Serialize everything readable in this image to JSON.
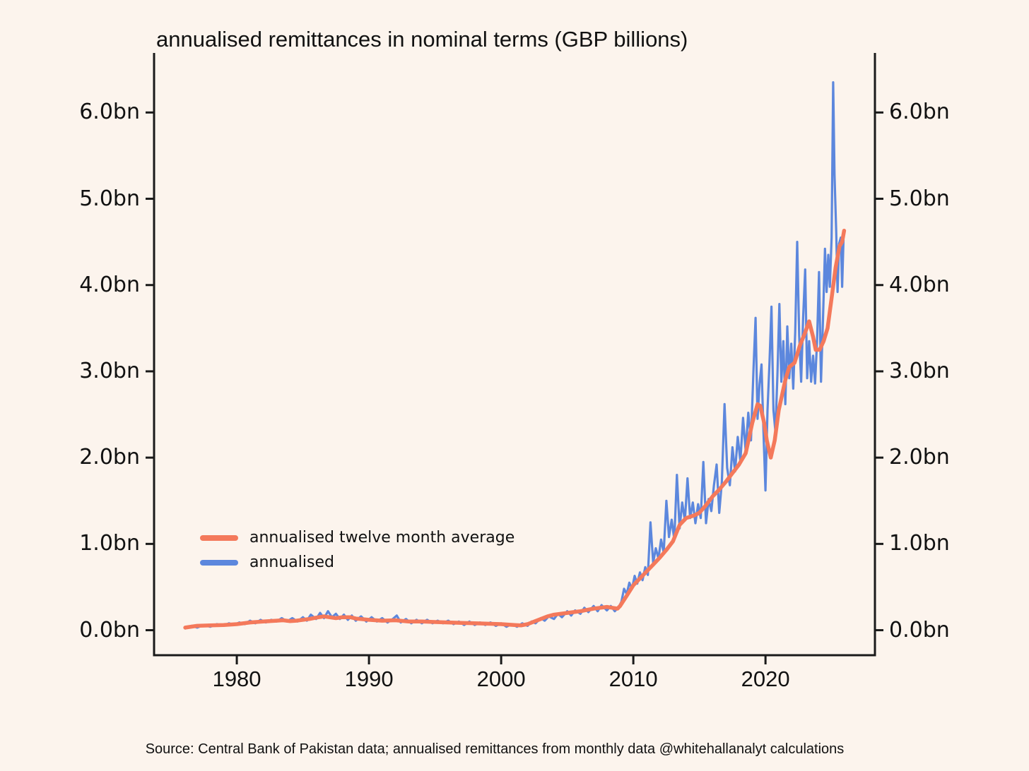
{
  "figure": {
    "background_color": "#FCF4ED",
    "text_color": "#111111",
    "spine_color": "#1a1a1a"
  },
  "chart_data": {
    "type": "line",
    "title": "annualised remittances in nominal terms (GBP billions)",
    "source": "Source: Central Bank of Pakistan data; annualised remittances from monthly data @whitehallanalyt calculations",
    "xlabel": "",
    "ylabel": "",
    "grid": false,
    "xlim": [
      1973.74,
      2028.28
    ],
    "ylim": [
      -0.29,
      6.69
    ],
    "x_ticks": [
      {
        "value": 1980,
        "label": "1980"
      },
      {
        "value": 1990,
        "label": "1990"
      },
      {
        "value": 2000,
        "label": "2000"
      },
      {
        "value": 2010,
        "label": "2010"
      },
      {
        "value": 2020,
        "label": "2020"
      }
    ],
    "y_ticks": [
      {
        "value": 0,
        "label": "0.0bn"
      },
      {
        "value": 1,
        "label": "1.0bn"
      },
      {
        "value": 2,
        "label": "2.0bn"
      },
      {
        "value": 3,
        "label": "3.0bn"
      },
      {
        "value": 4,
        "label": "4.0bn"
      },
      {
        "value": 5,
        "label": "5.0bn"
      },
      {
        "value": 6,
        "label": "6.0bn"
      }
    ],
    "y_axis_sides": [
      "left",
      "right"
    ],
    "legend": {
      "position": "lower-left-inside",
      "entries": [
        {
          "label": "annualised twelve month average",
          "color": "#F4795B"
        },
        {
          "label": "annualised",
          "color": "#5C87DD"
        }
      ]
    },
    "series": [
      {
        "name": "annualised",
        "color": "#5C87DD",
        "line_width": 3.2,
        "points": [
          [
            1976.1,
            0.02
          ],
          [
            1976.6,
            0.05
          ],
          [
            1977.0,
            0.03
          ],
          [
            1977.5,
            0.06
          ],
          [
            1978.0,
            0.04
          ],
          [
            1978.5,
            0.07
          ],
          [
            1979.0,
            0.05
          ],
          [
            1979.4,
            0.08
          ],
          [
            1979.8,
            0.06
          ],
          [
            1980.2,
            0.09
          ],
          [
            1980.6,
            0.07
          ],
          [
            1981.0,
            0.11
          ],
          [
            1981.4,
            0.08
          ],
          [
            1981.8,
            0.12
          ],
          [
            1982.2,
            0.09
          ],
          [
            1982.6,
            0.12
          ],
          [
            1983.0,
            0.1
          ],
          [
            1983.4,
            0.14
          ],
          [
            1983.8,
            0.1
          ],
          [
            1984.2,
            0.14
          ],
          [
            1984.6,
            0.1
          ],
          [
            1985.0,
            0.15
          ],
          [
            1985.3,
            0.11
          ],
          [
            1985.6,
            0.18
          ],
          [
            1986.0,
            0.13
          ],
          [
            1986.3,
            0.2
          ],
          [
            1986.6,
            0.14
          ],
          [
            1986.9,
            0.22
          ],
          [
            1987.2,
            0.15
          ],
          [
            1987.5,
            0.19
          ],
          [
            1987.8,
            0.13
          ],
          [
            1988.1,
            0.18
          ],
          [
            1988.4,
            0.12
          ],
          [
            1988.7,
            0.17
          ],
          [
            1989.0,
            0.11
          ],
          [
            1989.4,
            0.16
          ],
          [
            1989.8,
            0.1
          ],
          [
            1990.2,
            0.15
          ],
          [
            1990.6,
            0.1
          ],
          [
            1991.0,
            0.14
          ],
          [
            1991.4,
            0.09
          ],
          [
            1991.8,
            0.13
          ],
          [
            1992.1,
            0.17
          ],
          [
            1992.4,
            0.09
          ],
          [
            1992.8,
            0.13
          ],
          [
            1993.2,
            0.08
          ],
          [
            1993.6,
            0.12
          ],
          [
            1994.0,
            0.08
          ],
          [
            1994.4,
            0.12
          ],
          [
            1994.8,
            0.08
          ],
          [
            1995.2,
            0.11
          ],
          [
            1995.6,
            0.08
          ],
          [
            1996.0,
            0.11
          ],
          [
            1996.4,
            0.07
          ],
          [
            1996.8,
            0.1
          ],
          [
            1997.2,
            0.06
          ],
          [
            1997.6,
            0.1
          ],
          [
            1998.0,
            0.06
          ],
          [
            1998.4,
            0.09
          ],
          [
            1998.8,
            0.06
          ],
          [
            1999.2,
            0.09
          ],
          [
            1999.6,
            0.05
          ],
          [
            2000.0,
            0.08
          ],
          [
            2000.4,
            0.04
          ],
          [
            2000.8,
            0.07
          ],
          [
            2001.2,
            0.04
          ],
          [
            2001.6,
            0.08
          ],
          [
            2002.0,
            0.05
          ],
          [
            2002.3,
            0.1
          ],
          [
            2002.6,
            0.08
          ],
          [
            2003.0,
            0.14
          ],
          [
            2003.3,
            0.11
          ],
          [
            2003.6,
            0.16
          ],
          [
            2004.0,
            0.13
          ],
          [
            2004.3,
            0.19
          ],
          [
            2004.6,
            0.15
          ],
          [
            2005.0,
            0.22
          ],
          [
            2005.3,
            0.17
          ],
          [
            2005.6,
            0.23
          ],
          [
            2006.0,
            0.19
          ],
          [
            2006.3,
            0.26
          ],
          [
            2006.6,
            0.21
          ],
          [
            2007.0,
            0.28
          ],
          [
            2007.3,
            0.22
          ],
          [
            2007.6,
            0.29
          ],
          [
            2008.0,
            0.23
          ],
          [
            2008.3,
            0.28
          ],
          [
            2008.6,
            0.22
          ],
          [
            2008.9,
            0.27
          ],
          [
            2009.1,
            0.33
          ],
          [
            2009.3,
            0.48
          ],
          [
            2009.5,
            0.42
          ],
          [
            2009.7,
            0.55
          ],
          [
            2009.9,
            0.48
          ],
          [
            2010.1,
            0.63
          ],
          [
            2010.3,
            0.54
          ],
          [
            2010.5,
            0.67
          ],
          [
            2010.7,
            0.58
          ],
          [
            2010.9,
            0.73
          ],
          [
            2011.1,
            0.64
          ],
          [
            2011.3,
            1.25
          ],
          [
            2011.5,
            0.78
          ],
          [
            2011.7,
            0.95
          ],
          [
            2011.9,
            0.83
          ],
          [
            2012.1,
            1.05
          ],
          [
            2012.3,
            0.9
          ],
          [
            2012.5,
            1.5
          ],
          [
            2012.7,
            1.08
          ],
          [
            2012.9,
            1.28
          ],
          [
            2013.1,
            1.05
          ],
          [
            2013.3,
            1.8
          ],
          [
            2013.5,
            1.18
          ],
          [
            2013.7,
            1.48
          ],
          [
            2013.9,
            1.27
          ],
          [
            2014.1,
            1.76
          ],
          [
            2014.3,
            1.3
          ],
          [
            2014.5,
            1.48
          ],
          [
            2014.7,
            1.24
          ],
          [
            2014.9,
            1.46
          ],
          [
            2015.1,
            1.3
          ],
          [
            2015.3,
            1.95
          ],
          [
            2015.5,
            1.24
          ],
          [
            2015.7,
            1.52
          ],
          [
            2015.9,
            1.38
          ],
          [
            2016.1,
            1.68
          ],
          [
            2016.3,
            1.92
          ],
          [
            2016.5,
            1.36
          ],
          [
            2016.7,
            1.72
          ],
          [
            2016.9,
            2.62
          ],
          [
            2017.1,
            1.88
          ],
          [
            2017.3,
            1.68
          ],
          [
            2017.5,
            2.12
          ],
          [
            2017.7,
            1.84
          ],
          [
            2017.9,
            2.24
          ],
          [
            2018.1,
            1.96
          ],
          [
            2018.3,
            2.46
          ],
          [
            2018.5,
            2.08
          ],
          [
            2018.7,
            2.52
          ],
          [
            2018.9,
            2.2
          ],
          [
            2019.1,
            3.05
          ],
          [
            2019.25,
            3.62
          ],
          [
            2019.4,
            2.45
          ],
          [
            2019.55,
            2.85
          ],
          [
            2019.7,
            3.08
          ],
          [
            2019.85,
            2.3
          ],
          [
            2020.0,
            1.62
          ],
          [
            2020.15,
            2.55
          ],
          [
            2020.3,
            3.1
          ],
          [
            2020.45,
            3.75
          ],
          [
            2020.6,
            2.55
          ],
          [
            2020.75,
            2.3
          ],
          [
            2020.9,
            2.95
          ],
          [
            2021.05,
            3.78
          ],
          [
            2021.2,
            2.88
          ],
          [
            2021.35,
            3.35
          ],
          [
            2021.5,
            2.62
          ],
          [
            2021.65,
            3.52
          ],
          [
            2021.8,
            2.92
          ],
          [
            2021.95,
            3.32
          ],
          [
            2022.1,
            2.8
          ],
          [
            2022.25,
            3.45
          ],
          [
            2022.4,
            4.5
          ],
          [
            2022.55,
            3.42
          ],
          [
            2022.7,
            2.88
          ],
          [
            2022.85,
            3.62
          ],
          [
            2023.0,
            4.18
          ],
          [
            2023.15,
            2.92
          ],
          [
            2023.3,
            3.35
          ],
          [
            2023.45,
            2.88
          ],
          [
            2023.6,
            3.18
          ],
          [
            2023.75,
            2.86
          ],
          [
            2023.9,
            3.35
          ],
          [
            2024.05,
            4.15
          ],
          [
            2024.2,
            2.88
          ],
          [
            2024.35,
            3.6
          ],
          [
            2024.5,
            4.42
          ],
          [
            2024.62,
            3.92
          ],
          [
            2024.75,
            4.35
          ],
          [
            2024.87,
            3.98
          ],
          [
            2025.0,
            4.55
          ],
          [
            2025.12,
            6.35
          ],
          [
            2025.22,
            5.28
          ],
          [
            2025.35,
            4.62
          ],
          [
            2025.45,
            3.92
          ],
          [
            2025.57,
            4.48
          ],
          [
            2025.7,
            4.55
          ],
          [
            2025.8,
            3.98
          ],
          [
            2025.9,
            4.52
          ]
        ]
      },
      {
        "name": "annualised twelve month average",
        "color": "#F4795B",
        "line_width": 5.5,
        "points": [
          [
            1976.1,
            0.03
          ],
          [
            1977,
            0.05
          ],
          [
            1978,
            0.055
          ],
          [
            1979,
            0.06
          ],
          [
            1980,
            0.07
          ],
          [
            1981,
            0.09
          ],
          [
            1982,
            0.1
          ],
          [
            1983,
            0.11
          ],
          [
            1983.5,
            0.115
          ],
          [
            1984,
            0.105
          ],
          [
            1984.5,
            0.11
          ],
          [
            1985,
            0.12
          ],
          [
            1985.5,
            0.13
          ],
          [
            1986,
            0.145
          ],
          [
            1986.6,
            0.16
          ],
          [
            1987,
            0.15
          ],
          [
            1987.5,
            0.14
          ],
          [
            1988,
            0.15
          ],
          [
            1988.6,
            0.15
          ],
          [
            1989,
            0.135
          ],
          [
            1990,
            0.12
          ],
          [
            1991,
            0.11
          ],
          [
            1992,
            0.115
          ],
          [
            1993,
            0.1
          ],
          [
            1994,
            0.1
          ],
          [
            1995,
            0.095
          ],
          [
            1996,
            0.09
          ],
          [
            1997,
            0.085
          ],
          [
            1998,
            0.08
          ],
          [
            1999,
            0.075
          ],
          [
            2000,
            0.07
          ],
          [
            2001,
            0.06
          ],
          [
            2001.5,
            0.055
          ],
          [
            2002,
            0.07
          ],
          [
            2002.5,
            0.1
          ],
          [
            2003,
            0.13
          ],
          [
            2003.5,
            0.16
          ],
          [
            2004,
            0.18
          ],
          [
            2004.5,
            0.19
          ],
          [
            2005,
            0.2
          ],
          [
            2005.5,
            0.21
          ],
          [
            2006,
            0.22
          ],
          [
            2006.5,
            0.235
          ],
          [
            2007,
            0.25
          ],
          [
            2007.5,
            0.26
          ],
          [
            2008,
            0.27
          ],
          [
            2008.4,
            0.26
          ],
          [
            2008.8,
            0.25
          ],
          [
            2009,
            0.28
          ],
          [
            2009.5,
            0.4
          ],
          [
            2010,
            0.52
          ],
          [
            2010.5,
            0.6
          ],
          [
            2011,
            0.68
          ],
          [
            2011.5,
            0.76
          ],
          [
            2012,
            0.84
          ],
          [
            2012.5,
            0.93
          ],
          [
            2013,
            1.03
          ],
          [
            2013.5,
            1.22
          ],
          [
            2014,
            1.3
          ],
          [
            2014.6,
            1.33
          ],
          [
            2015,
            1.36
          ],
          [
            2015.5,
            1.45
          ],
          [
            2016,
            1.55
          ],
          [
            2016.5,
            1.63
          ],
          [
            2017,
            1.72
          ],
          [
            2017.5,
            1.82
          ],
          [
            2018,
            1.92
          ],
          [
            2018.5,
            2.05
          ],
          [
            2019,
            2.4
          ],
          [
            2019.4,
            2.62
          ],
          [
            2019.6,
            2.6
          ],
          [
            2019.9,
            2.4
          ],
          [
            2020.1,
            2.2
          ],
          [
            2020.4,
            2.0
          ],
          [
            2020.7,
            2.2
          ],
          [
            2021,
            2.55
          ],
          [
            2021.5,
            2.9
          ],
          [
            2021.8,
            3.05
          ],
          [
            2022.2,
            3.1
          ],
          [
            2022.6,
            3.3
          ],
          [
            2023,
            3.45
          ],
          [
            2023.3,
            3.58
          ],
          [
            2023.6,
            3.4
          ],
          [
            2023.8,
            3.25
          ],
          [
            2024.1,
            3.25
          ],
          [
            2024.4,
            3.35
          ],
          [
            2024.7,
            3.5
          ],
          [
            2025,
            3.85
          ],
          [
            2025.3,
            4.2
          ],
          [
            2025.6,
            4.45
          ],
          [
            2025.8,
            4.5
          ],
          [
            2025.95,
            4.63
          ]
        ]
      }
    ]
  }
}
